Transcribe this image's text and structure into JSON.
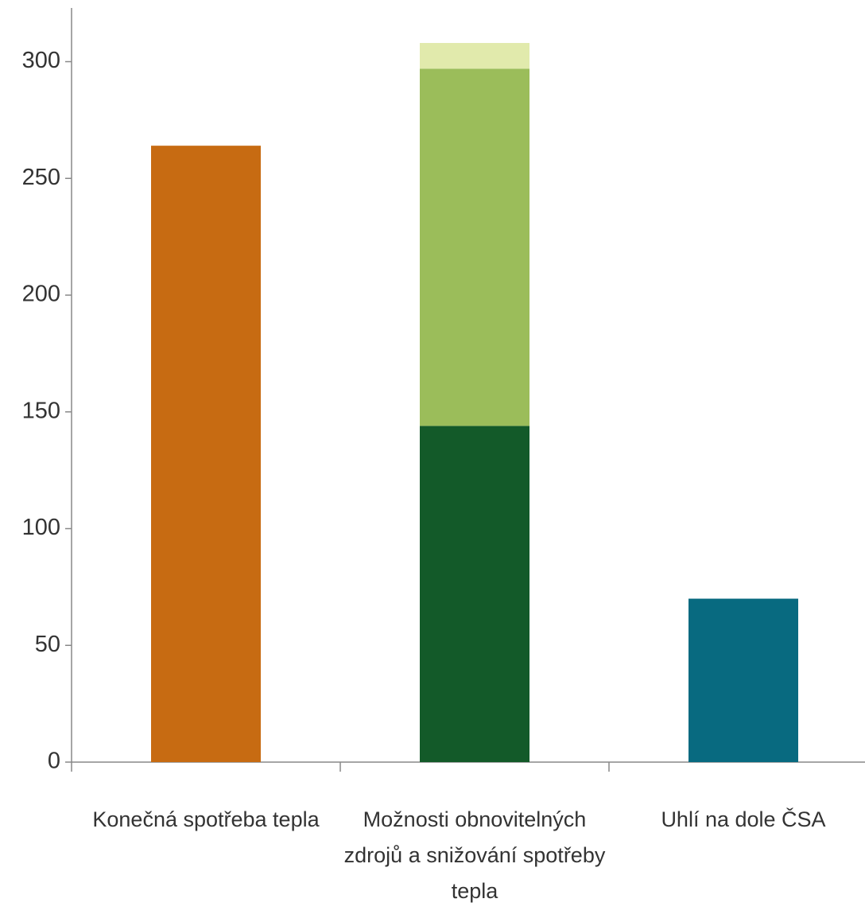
{
  "chart_data": {
    "type": "stacked_bar",
    "categories": [
      "Konečná spotřeba tepla",
      "Možnosti obnovitelných zdrojů a snižování spotřeby tepla",
      "Uhlí na dole ČSA"
    ],
    "series": [
      {
        "color": "#c76b12",
        "values": [
          264,
          null,
          null
        ]
      },
      {
        "color": "#135a29",
        "values": [
          null,
          144,
          null
        ]
      },
      {
        "color": "#9bbd5a",
        "values": [
          null,
          153,
          null
        ]
      },
      {
        "color": "#e1eaac",
        "values": [
          null,
          11,
          null
        ]
      },
      {
        "color": "#086a80",
        "values": [
          null,
          null,
          70
        ]
      }
    ],
    "ylim": [
      0,
      323
    ],
    "yticks": [
      0,
      50,
      100,
      150,
      200,
      250,
      300
    ],
    "grid": false
  }
}
